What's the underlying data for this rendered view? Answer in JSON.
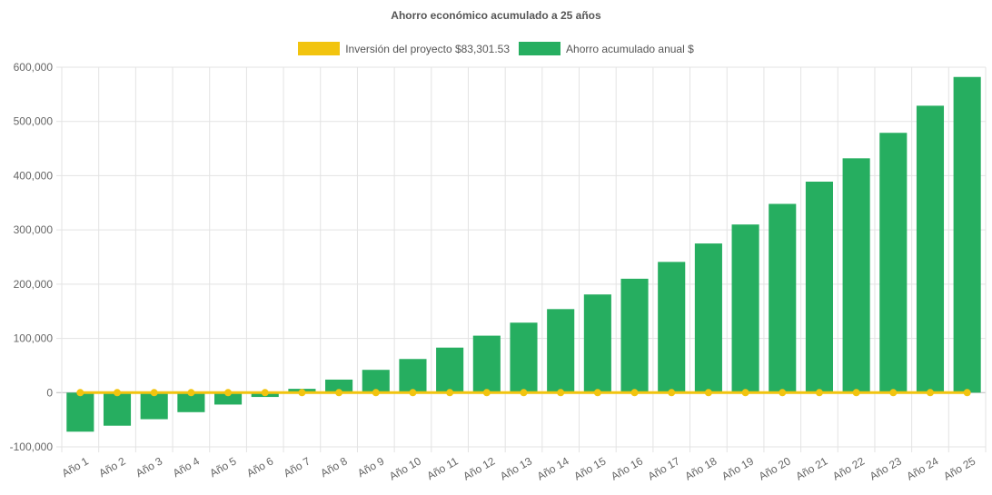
{
  "chart_data": {
    "type": "bar",
    "title": "Ahorro económico acumulado a 25 años",
    "categories": [
      "Año 1",
      "Año 2",
      "Año 3",
      "Año 4",
      "Año 5",
      "Año 6",
      "Año 7",
      "Año 8",
      "Año 9",
      "Año 10",
      "Año 11",
      "Año 12",
      "Año 13",
      "Año 14",
      "Año 15",
      "Año 16",
      "Año 17",
      "Año 18",
      "Año 19",
      "Año 20",
      "Año 21",
      "Año 22",
      "Año 23",
      "Año 24",
      "Año 25"
    ],
    "series": [
      {
        "name": "Inversión del proyecto $83,301.53",
        "type": "line",
        "color": "#f2c40f",
        "values": [
          0,
          0,
          0,
          0,
          0,
          0,
          0,
          0,
          0,
          0,
          0,
          0,
          0,
          0,
          0,
          0,
          0,
          0,
          0,
          0,
          0,
          0,
          0,
          0,
          0
        ]
      },
      {
        "name": "Ahorro acumulado anual $",
        "type": "bar",
        "color": "#26ae60",
        "values": [
          -72000,
          -61000,
          -49000,
          -36000,
          -22000,
          -8000,
          7000,
          24000,
          42000,
          62000,
          83000,
          105000,
          129000,
          154000,
          181000,
          210000,
          241000,
          275000,
          310000,
          348000,
          389000,
          432000,
          479000,
          529000,
          582000
        ]
      }
    ],
    "ylim": [
      -100000,
      600000
    ],
    "yticks": [
      "600,000",
      "500,000",
      "400,000",
      "300,000",
      "200,000",
      "100,000",
      "0",
      "-100,000"
    ],
    "grid": true,
    "legend": "top-center"
  }
}
